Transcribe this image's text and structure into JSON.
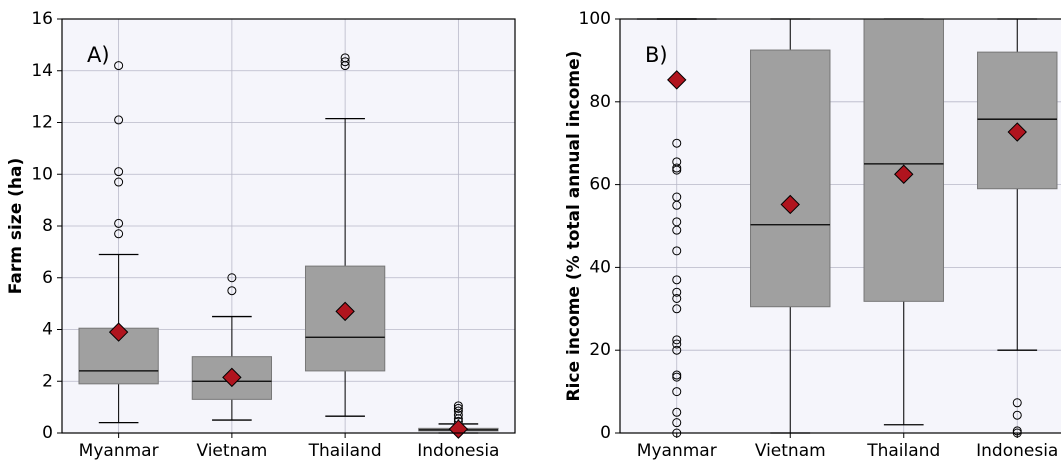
{
  "chart_data": [
    {
      "type": "box",
      "panel_label": "A)",
      "ylabel": "Farm size (ha)",
      "categories": [
        "Myanmar",
        "Vietnam",
        "Thailand",
        "Indonesia"
      ],
      "ylim": [
        0,
        16
      ],
      "yticks": [
        0,
        2,
        4,
        6,
        8,
        10,
        12,
        14,
        16
      ],
      "grid": true,
      "box_color": "#a0a0a0",
      "mean_color": "#b0141e",
      "boxes": [
        {
          "low": 0.4,
          "q1": 1.9,
          "median": 2.4,
          "q3": 4.05,
          "high": 6.9,
          "mean": 3.9,
          "outliers": [
            7.7,
            8.1,
            9.7,
            10.1,
            12.1,
            14.2
          ]
        },
        {
          "low": 0.5,
          "q1": 1.3,
          "median": 2.0,
          "q3": 2.95,
          "high": 4.5,
          "mean": 2.15,
          "outliers": [
            5.5,
            6.0
          ]
        },
        {
          "low": 0.65,
          "q1": 2.4,
          "median": 3.7,
          "q3": 6.45,
          "high": 12.15,
          "mean": 4.7,
          "outliers": [
            14.2,
            14.35,
            14.5
          ]
        },
        {
          "low": 0.0,
          "q1": 0.08,
          "median": 0.12,
          "q3": 0.18,
          "high": 0.35,
          "mean": 0.15,
          "outliers": [
            0.45,
            0.55,
            0.7,
            0.85,
            0.95,
            1.05
          ]
        }
      ]
    },
    {
      "type": "box",
      "panel_label": "B)",
      "ylabel": "Rice income (% total annual income)",
      "categories": [
        "Myanmar",
        "Vietnam",
        "Thailand",
        "Indonesia"
      ],
      "ylim": [
        0,
        100
      ],
      "yticks": [
        0,
        20,
        40,
        60,
        80,
        100
      ],
      "grid": true,
      "box_color": "#a0a0a0",
      "mean_color": "#b0141e",
      "boxes": [
        {
          "low": 100,
          "q1": 100,
          "median": 100,
          "q3": 100,
          "high": 100,
          "mean": 85.3,
          "outliers": [
            0,
            2.5,
            5,
            10,
            13.5,
            14,
            20,
            21.5,
            22.5,
            30,
            32.5,
            34,
            37,
            44,
            49,
            51,
            55,
            57,
            63.5,
            64,
            65.5,
            70
          ]
        },
        {
          "low": 0,
          "q1": 30.5,
          "median": 50.3,
          "q3": 92.5,
          "high": 100,
          "mean": 55.2,
          "outliers": []
        },
        {
          "low": 2,
          "q1": 31.8,
          "median": 65,
          "q3": 100,
          "high": 100,
          "mean": 62.5,
          "outliers": []
        },
        {
          "low": 20,
          "q1": 59,
          "median": 75.8,
          "q3": 92,
          "high": 100,
          "mean": 72.7,
          "outliers": [
            0,
            0.5,
            4.3,
            7.3
          ]
        }
      ]
    }
  ]
}
